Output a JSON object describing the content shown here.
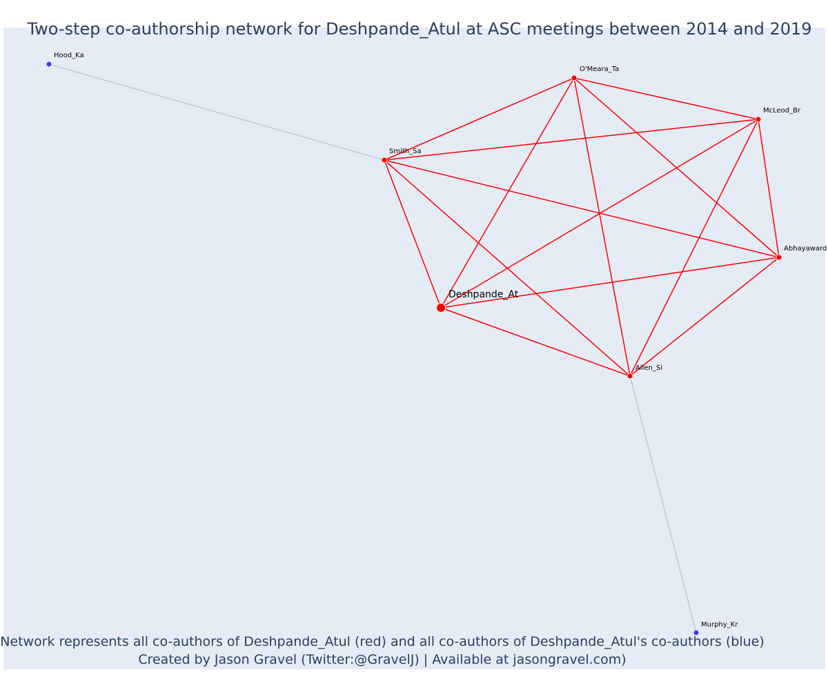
{
  "title": "Two-step co-authorship network for Deshpande_Atul at ASC meetings between 2014 and 2019",
  "caption": {
    "line1": "Network represents all co-authors of Deshpande_Atul (red) and all co-authors of Deshpande_Atul's co-authors (blue)",
    "line2": "Created by Jason Gravel (Twitter:@GravelJ) | Available at jasongravel.com)"
  },
  "colors": {
    "background": "#e5ecf6",
    "coauthor": "#ff0000",
    "second_step": "#3b3bf5",
    "coauthor_edge": "#ff0000",
    "second_step_edge": "#b4b8c8",
    "text": "#2a3f5f"
  },
  "nodes": [
    {
      "id": "Deshpande_At",
      "label": "Deshpande_At",
      "group": "focal"
    },
    {
      "id": "Smith_Sa",
      "label": "Smith_Sa",
      "group": "coauthor"
    },
    {
      "id": "O'Meara_Ta",
      "label": "O'Meara_Ta",
      "group": "coauthor"
    },
    {
      "id": "McLeod_Br",
      "label": "McLeod_Br",
      "group": "coauthor"
    },
    {
      "id": "Abhayaward",
      "label": "Abhayaward",
      "group": "coauthor"
    },
    {
      "id": "Allen_Si",
      "label": "Allen_Si",
      "group": "coauthor"
    },
    {
      "id": "Hood_Ka",
      "label": "Hood_Ka",
      "group": "second_step"
    },
    {
      "id": "Murphy_Kr",
      "label": "Murphy_Kr",
      "group": "second_step"
    }
  ],
  "edges": [
    [
      "Deshpande_At",
      "Smith_Sa"
    ],
    [
      "Deshpande_At",
      "O'Meara_Ta"
    ],
    [
      "Deshpande_At",
      "McLeod_Br"
    ],
    [
      "Deshpande_At",
      "Abhayaward"
    ],
    [
      "Deshpande_At",
      "Allen_Si"
    ],
    [
      "Smith_Sa",
      "O'Meara_Ta"
    ],
    [
      "Smith_Sa",
      "McLeod_Br"
    ],
    [
      "Smith_Sa",
      "Abhayaward"
    ],
    [
      "Smith_Sa",
      "Allen_Si"
    ],
    [
      "O'Meara_Ta",
      "McLeod_Br"
    ],
    [
      "O'Meara_Ta",
      "Abhayaward"
    ],
    [
      "O'Meara_Ta",
      "Allen_Si"
    ],
    [
      "McLeod_Br",
      "Abhayaward"
    ],
    [
      "McLeod_Br",
      "Allen_Si"
    ],
    [
      "Abhayaward",
      "Allen_Si"
    ],
    [
      "Hood_Ka",
      "Smith_Sa"
    ],
    [
      "Allen_Si",
      "Murphy_Kr"
    ]
  ]
}
